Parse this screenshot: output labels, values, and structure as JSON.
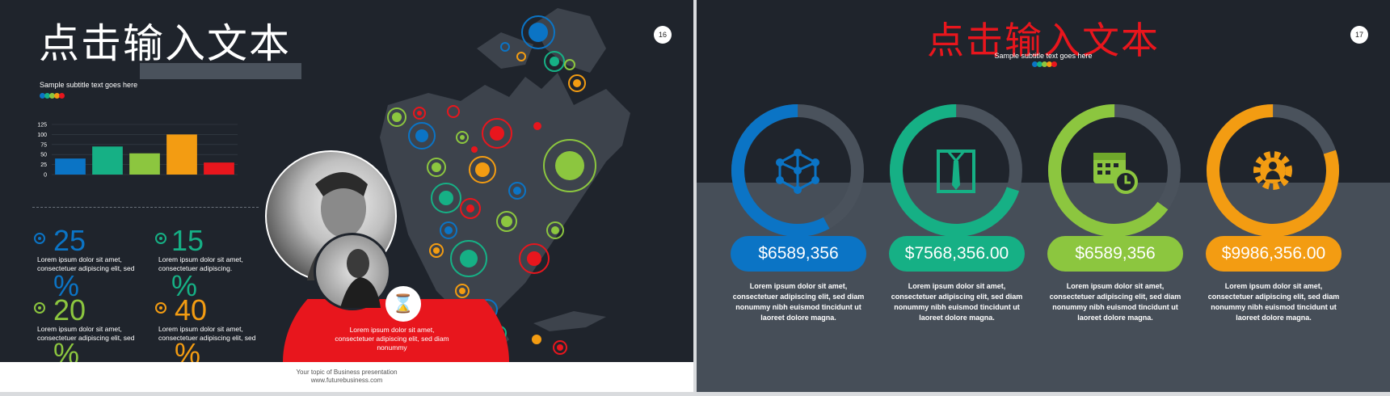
{
  "slide16": {
    "title": "点击输入文本",
    "subtitle": "Sample  subtitle text goes  here",
    "page_number": "16",
    "dot_colors": [
      "#0b74c5",
      "#16b085",
      "#8cc63f",
      "#f39c12",
      "#e8161d"
    ],
    "chart_data": {
      "type": "bar",
      "categories": [
        "",
        "",
        "",
        "",
        ""
      ],
      "values": [
        40,
        70,
        53,
        100,
        30
      ],
      "colors": [
        "#0b74c5",
        "#16b085",
        "#8cc63f",
        "#f39c12",
        "#e8161d"
      ],
      "ylim": [
        0,
        125
      ],
      "yticks": [
        "125",
        "100",
        "75",
        "50",
        "25",
        "0"
      ]
    },
    "stats": [
      {
        "number": "25",
        "pct": "%",
        "color": "#0b74c5",
        "text": "Lorem ipsum dolor  sit amet, consectetuer adipiscing elit, sed"
      },
      {
        "number": "15",
        "pct": "%",
        "color": "#16b085",
        "text": "Lorem ipsum dolor  sit amet, consectetuer adipiscing."
      },
      {
        "number": "20",
        "pct": "%",
        "color": "#8cc63f",
        "text": "Lorem ipsum dolor  sit amet, consectetuer adipiscing elit, sed"
      },
      {
        "number": "40",
        "pct": "%",
        "color": "#f39c12",
        "text": "Lorem ipsum dolor  sit amet, consectetuer adipiscing elit, sed"
      }
    ],
    "red_text": "Lorem ipsum dolor  sit amet, consectetuer adipiscing elit, sed diam nonummy",
    "footer_line1": "Your topic of Business presentation",
    "footer_line2": "www.futurebusiness.com"
  },
  "slide17": {
    "title": "点击输入文本",
    "subtitle": "Sample  subtitle text goes  here",
    "page_number": "17",
    "dot_colors": [
      "#0b74c5",
      "#16b085",
      "#8cc63f",
      "#f39c12",
      "#e8161d"
    ],
    "cards": [
      {
        "value": "$6589,356",
        "color": "#0b74c5",
        "progress": 0.58,
        "icon": "network-cube-icon",
        "text": "Lorem ipsum dolor sit amet, consectetuer adipiscing elit, sed diam nonummy nibh euismod tincidunt ut laoreet dolore magna."
      },
      {
        "value": "$7568,356.00",
        "color": "#16b085",
        "progress": 0.7,
        "icon": "shirt-tie-icon",
        "text": "Lorem ipsum dolor sit amet, consectetuer adipiscing elit, sed diam nonummy nibh euismod tincidunt ut laoreet dolore magna."
      },
      {
        "value": "$6589,356",
        "color": "#8cc63f",
        "progress": 0.65,
        "icon": "calendar-clock-icon",
        "text": "Lorem ipsum dolor sit amet, consectetuer adipiscing elit, sed diam nonummy nibh euismod tincidunt ut laoreet dolore magna."
      },
      {
        "value": "$9986,356.00",
        "color": "#f39c12",
        "progress": 0.8,
        "icon": "gear-person-icon",
        "text": "Lorem ipsum dolor sit amet, consectetuer adipiscing elit, sed diam nonummy nibh euismod tincidunt ut laoreet dolore magna."
      }
    ]
  }
}
